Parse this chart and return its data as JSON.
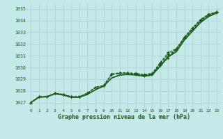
{
  "title": "Graphe pression niveau de la mer (hPa)",
  "bg_color": "#c5e8e8",
  "grid_color": "#aed4d4",
  "line_color": "#1a5c1a",
  "xlim": [
    -0.5,
    23.5
  ],
  "ylim": [
    1026.5,
    1035.4
  ],
  "yticks": [
    1027,
    1028,
    1029,
    1030,
    1031,
    1032,
    1033,
    1034,
    1035
  ],
  "xticks": [
    0,
    1,
    2,
    3,
    4,
    5,
    6,
    7,
    8,
    9,
    10,
    11,
    12,
    13,
    14,
    15,
    16,
    17,
    18,
    19,
    20,
    21,
    22,
    23
  ],
  "series": [
    [
      1027.0,
      1027.5,
      1027.5,
      1027.8,
      1027.7,
      1027.5,
      1027.5,
      1027.8,
      1028.3,
      1028.45,
      1029.45,
      1029.55,
      1029.55,
      1029.5,
      1029.4,
      1029.5,
      1030.4,
      1031.3,
      1031.6,
      1032.6,
      1033.4,
      1034.1,
      1034.55,
      1034.75
    ],
    [
      1027.0,
      1027.5,
      1027.5,
      1027.8,
      1027.7,
      1027.5,
      1027.5,
      1027.8,
      1028.3,
      1028.45,
      1029.4,
      1029.5,
      1029.5,
      1029.45,
      1029.35,
      1029.45,
      1030.35,
      1031.15,
      1031.55,
      1032.55,
      1033.3,
      1034.0,
      1034.5,
      1034.75
    ],
    [
      1027.0,
      1027.5,
      1027.5,
      1027.8,
      1027.7,
      1027.5,
      1027.5,
      1027.8,
      1028.3,
      1028.45,
      1029.4,
      1029.5,
      1029.5,
      1029.4,
      1029.3,
      1029.4,
      1030.3,
      1031.0,
      1031.5,
      1032.5,
      1033.2,
      1034.0,
      1034.45,
      1034.7
    ],
    [
      1027.0,
      1027.5,
      1027.5,
      1027.8,
      1027.7,
      1027.5,
      1027.5,
      1027.8,
      1028.3,
      1028.45,
      1029.4,
      1029.5,
      1029.5,
      1029.45,
      1029.35,
      1029.45,
      1030.2,
      1030.8,
      1031.6,
      1032.55,
      1033.3,
      1034.05,
      1034.5,
      1034.75
    ]
  ],
  "smooth_series": [
    1027.0,
    1027.45,
    1027.5,
    1027.75,
    1027.65,
    1027.45,
    1027.45,
    1027.7,
    1028.1,
    1028.4,
    1029.1,
    1029.35,
    1029.4,
    1029.35,
    1029.25,
    1029.35,
    1030.1,
    1030.9,
    1031.35,
    1032.35,
    1033.1,
    1033.85,
    1034.35,
    1034.65
  ]
}
